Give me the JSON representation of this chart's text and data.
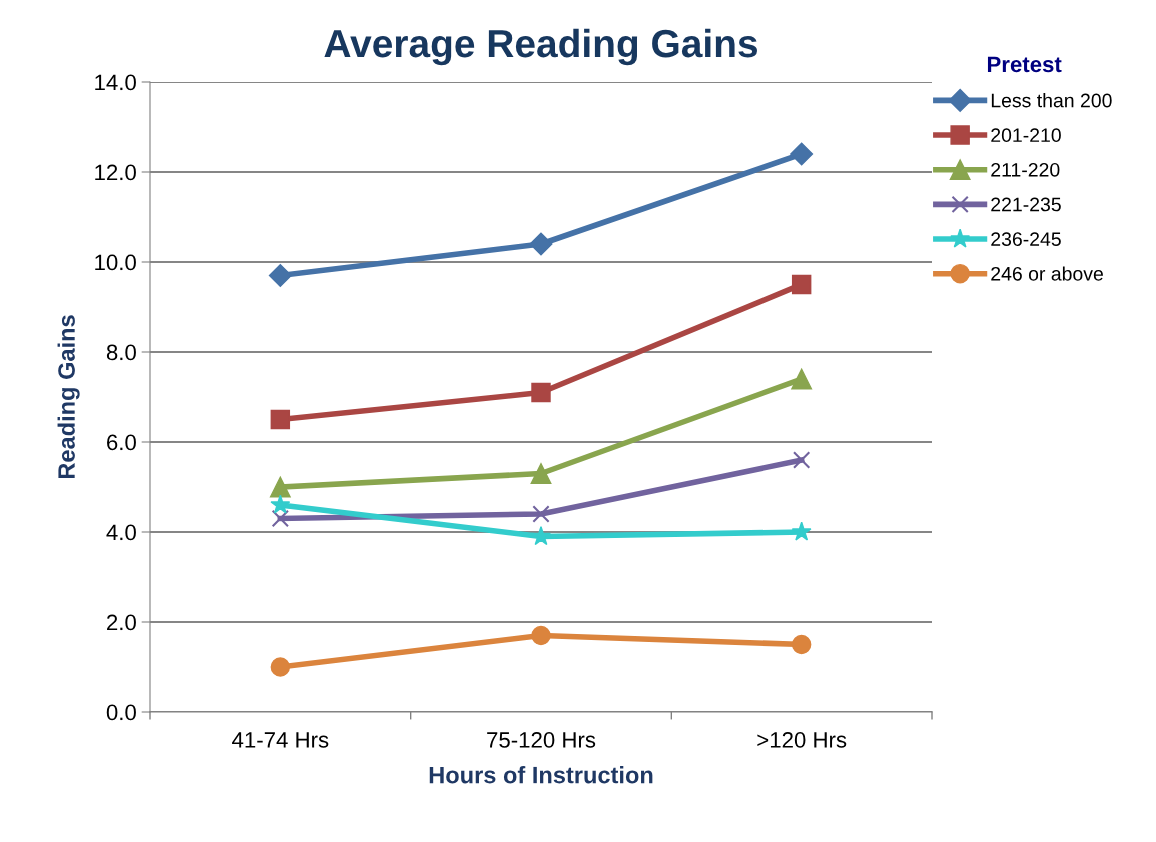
{
  "chart_data": {
    "type": "line",
    "title": "Average Reading Gains",
    "xlabel": "Hours of Instruction",
    "ylabel": "Reading Gains",
    "legend_title": "Pretest",
    "categories": [
      "41-74 Hrs",
      "75-120 Hrs",
      ">120 Hrs"
    ],
    "series": [
      {
        "name": "Less than 200",
        "color": "#4572a7",
        "marker": "diamond",
        "values": [
          9.7,
          10.4,
          12.4
        ]
      },
      {
        "name": "201-210",
        "color": "#aa4643",
        "marker": "square",
        "values": [
          6.5,
          7.1,
          9.5
        ]
      },
      {
        "name": "211-220",
        "color": "#89a54e",
        "marker": "triangle",
        "values": [
          5.0,
          5.3,
          7.4
        ]
      },
      {
        "name": "221-235",
        "color": "#71639e",
        "marker": "cross",
        "values": [
          4.3,
          4.4,
          5.6
        ]
      },
      {
        "name": "236-245",
        "color": "#33cccc",
        "marker": "star",
        "values": [
          4.6,
          3.9,
          4.0
        ]
      },
      {
        "name": "246 or above",
        "color": "#db843d",
        "marker": "circle",
        "values": [
          1.0,
          1.7,
          1.5
        ]
      }
    ],
    "ylim": [
      0,
      14
    ],
    "yticks": [
      {
        "value": 0,
        "label": "0.0"
      },
      {
        "value": 2,
        "label": "2.0"
      },
      {
        "value": 4,
        "label": "4.0"
      },
      {
        "value": 6,
        "label": "6.0"
      },
      {
        "value": 8,
        "label": "8.0"
      },
      {
        "value": 10,
        "label": "10.0"
      },
      {
        "value": 12,
        "label": "12.0"
      },
      {
        "value": 14,
        "label": "14.0"
      }
    ],
    "grid": "y",
    "legend": "right",
    "line_style": "solid"
  }
}
